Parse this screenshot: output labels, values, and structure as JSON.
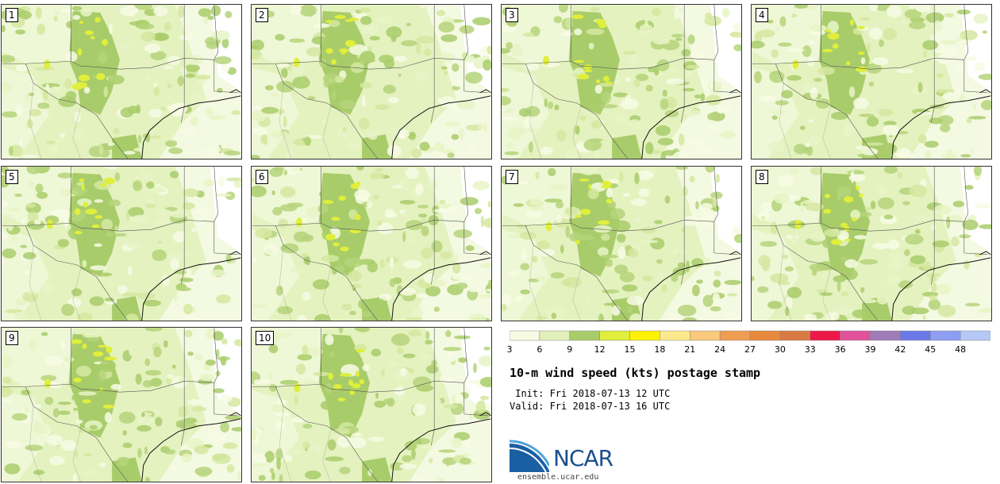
{
  "members": [
    "1",
    "2",
    "3",
    "4",
    "5",
    "6",
    "7",
    "8",
    "9",
    "10"
  ],
  "legend": {
    "ticks": [
      "3",
      "6",
      "9",
      "12",
      "15",
      "18",
      "21",
      "24",
      "27",
      "30",
      "33",
      "36",
      "39",
      "42",
      "45",
      "48"
    ],
    "colors": [
      "#f7fbe4",
      "#e1f0b9",
      "#a9cc6b",
      "#dfef3b",
      "#fdf205",
      "#fde98d",
      "#f9c97c",
      "#ef9d52",
      "#e88a3e",
      "#d97a42",
      "#ed1748",
      "#e0529a",
      "#a07bb8",
      "#6b78e6",
      "#8e9ef3",
      "#b6c8f8"
    ]
  },
  "title": "10-m wind speed (kts) postage stamp",
  "init": " Init: Fri 2018-07-13 12 UTC",
  "valid": "Valid: Fri 2018-07-13 16 UTC",
  "logo_text": "NCAR",
  "site": "ensemble.ucar.edu"
}
